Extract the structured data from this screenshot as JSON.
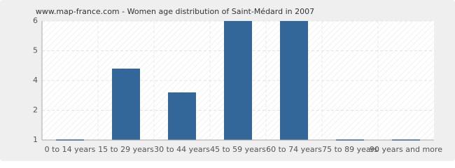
{
  "chart_data": {
    "type": "bar",
    "title": "www.map-france.com - Women age distribution of Saint-Médard in 2007",
    "categories": [
      "0 to 14 years",
      "15 to 29 years",
      "30 to 44 years",
      "45 to 59 years",
      "60 to 74 years",
      "75 to 89 years",
      "90 years and more"
    ],
    "values": [
      1,
      4,
      3,
      6,
      6,
      1,
      1
    ],
    "color": "#336699",
    "ylim": [
      1,
      6
    ],
    "yticks": [
      1,
      {
        "value": 2.25,
        "label": "2"
      },
      {
        "value": 3.5,
        "label": "4"
      },
      {
        "value": 4.75,
        "label": "5"
      },
      6
    ],
    "grid": true
  }
}
